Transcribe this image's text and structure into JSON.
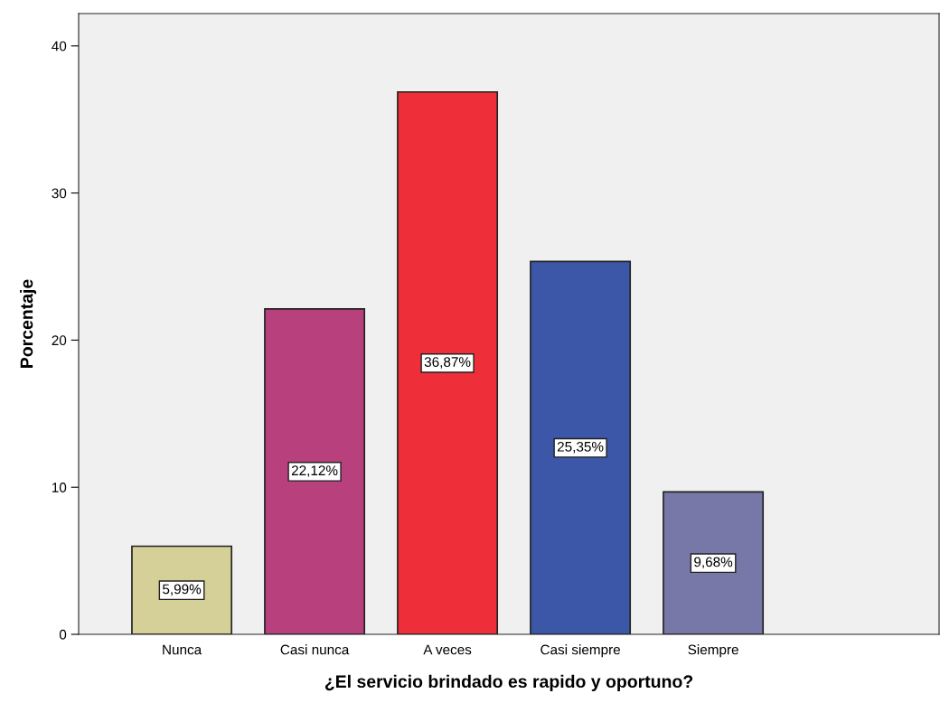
{
  "chart_data": {
    "type": "bar",
    "xlabel": "¿El servicio brindado es rapido y oportuno?",
    "ylabel": "Porcentaje",
    "categories": [
      "Nunca",
      "Casi nunca",
      "A veces",
      "Casi siempre",
      "Siempre"
    ],
    "values": [
      5.99,
      22.12,
      36.87,
      25.35,
      9.68
    ],
    "colors": [
      "#d5cf98",
      "#b8407c",
      "#ee2e38",
      "#3c56a8",
      "#7878a8"
    ],
    "value_labels": [
      "5,99%",
      "22,12%",
      "36,87%",
      "25,35%",
      "9,68%"
    ],
    "ylim": [
      0,
      42.2
    ],
    "yticks": [
      0,
      10,
      20,
      30,
      40
    ],
    "grid": false,
    "legend": false
  }
}
